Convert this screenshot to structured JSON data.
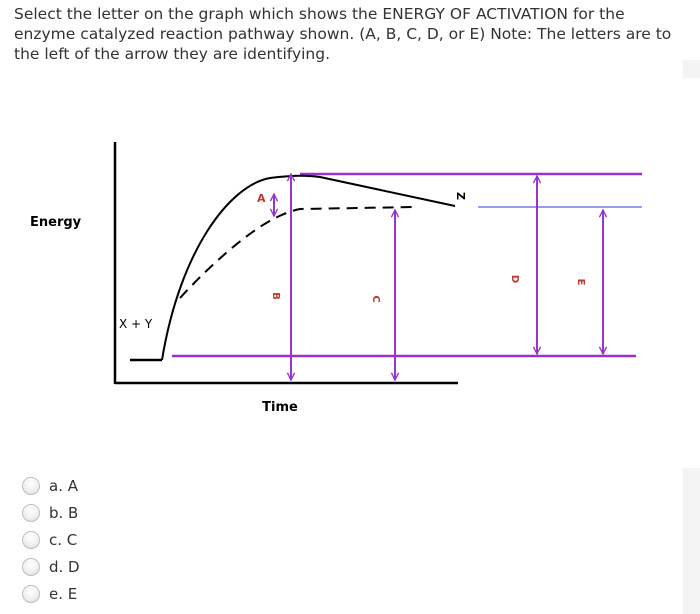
{
  "question": {
    "text": "Select the letter on the graph which shows the ENERGY OF ACTIVATION for the\nenzyme catalyzed reaction pathway shown. (A, B, C, D, or E) Note: The letters are to\nthe left of the arrow they are identifying."
  },
  "diagram": {
    "y_axis_label": "Energy",
    "x_axis_label": "Time",
    "reactant_label": "X + Y",
    "product_label": "Z",
    "letters": {
      "a": "A",
      "b": "B",
      "c": "C",
      "d": "D",
      "e": "E"
    },
    "colors": {
      "level_lines": "#9933cc",
      "upper_line": "#9999ee",
      "curves": "#000000",
      "axes": "#000000"
    }
  },
  "options": [
    {
      "label": "a. A"
    },
    {
      "label": "b. B"
    },
    {
      "label": "c. C"
    },
    {
      "label": "d. D"
    },
    {
      "label": "e. E"
    }
  ]
}
